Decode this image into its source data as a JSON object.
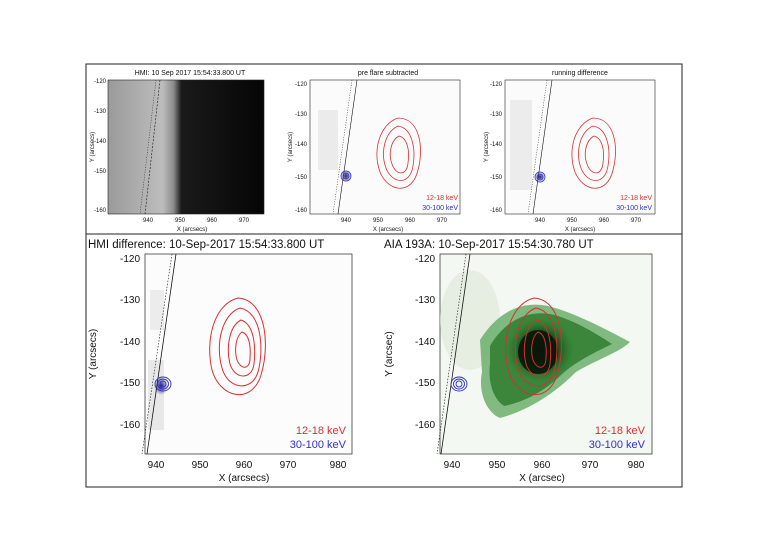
{
  "figure": {
    "top_panels": [
      {
        "title": "HMI: 10 Sep 2017 15:54:33.800 UT",
        "ylabel": "Y (arcsecs)",
        "xlabel": "X (arcsecs)",
        "legend": [],
        "yticks": [
          "-120",
          "-130",
          "-140",
          "-150",
          "-160"
        ],
        "xticks": [
          "940",
          "950",
          "960",
          "970"
        ]
      },
      {
        "title": "pre flare subtracted",
        "ylabel": "Y (arcsecs)",
        "xlabel": "X (arcsecs)",
        "legend": [
          "12-18 keV",
          "30-100 keV"
        ],
        "yticks": [
          "-120",
          "-130",
          "-140",
          "-150",
          "-160"
        ],
        "xticks": [
          "940",
          "950",
          "960",
          "970"
        ]
      },
      {
        "title": "running difference",
        "ylabel": "Y (arcsecs)",
        "xlabel": "X (arcsecs)",
        "legend": [
          "12-18 keV",
          "30-100 keV"
        ],
        "yticks": [
          "-120",
          "-130",
          "-140",
          "-150",
          "-160"
        ],
        "xticks": [
          "940",
          "950",
          "960",
          "970"
        ]
      }
    ],
    "bottom_panels": [
      {
        "title": "HMI difference:  10-Sep-2017 15:54:33.800 UT",
        "ylabel": "Y (arcsecs)",
        "xlabel": "X (arcsecs)",
        "legend": [
          "12-18 keV",
          "30-100 keV"
        ],
        "yticks": [
          "-120",
          "-130",
          "-140",
          "-150",
          "-160"
        ],
        "xticks": [
          "940",
          "950",
          "960",
          "970",
          "980"
        ]
      },
      {
        "title": "AIA 193A:  10-Sep-2017 15:54:30.780 UT",
        "ylabel": "Y (arcsec)",
        "xlabel": "X (arcsec)",
        "legend": [
          "12-18 keV",
          "30-100 keV"
        ],
        "yticks": [
          "-120",
          "-130",
          "-140",
          "-150",
          "-160"
        ],
        "xticks": [
          "940",
          "950",
          "960",
          "970",
          "980"
        ]
      }
    ],
    "colors": {
      "hard_xray": "#d63030",
      "high_energy": "#3030c8",
      "aia_dark": "#0c1e0c",
      "aia_green": "#2f8a2f"
    }
  }
}
